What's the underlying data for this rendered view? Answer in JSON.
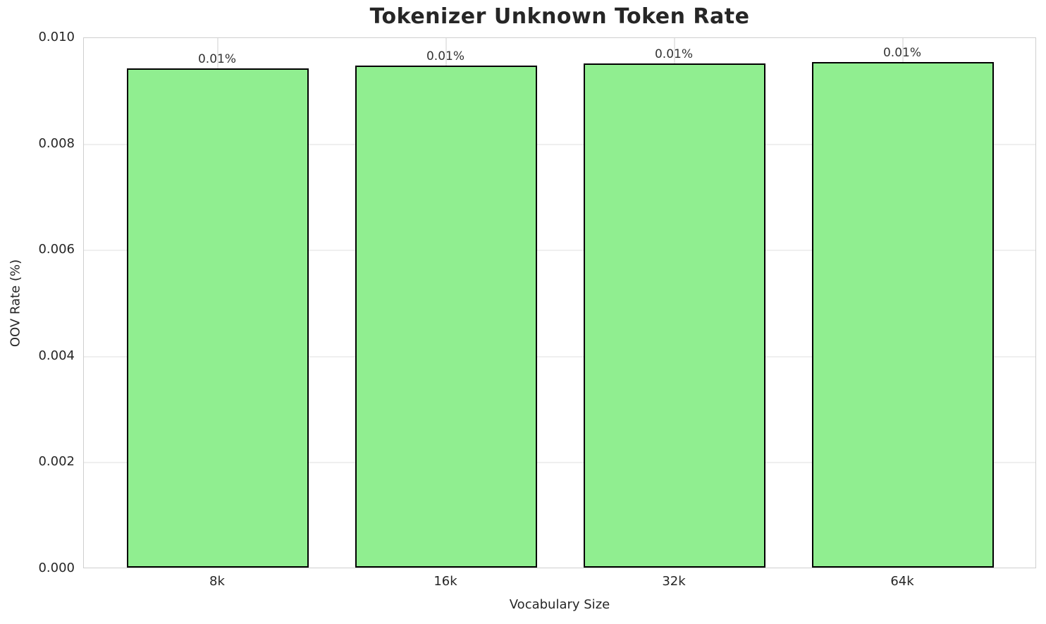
{
  "chart_data": {
    "type": "bar",
    "title": "Tokenizer Unknown Token Rate",
    "xlabel": "Vocabulary Size",
    "ylabel": "OOV Rate (%)",
    "categories": [
      "8k",
      "16k",
      "32k",
      "64k"
    ],
    "values": [
      0.0094,
      0.00945,
      0.00949,
      0.00952
    ],
    "bar_labels": [
      "0.01%",
      "0.01%",
      "0.01%",
      "0.01%"
    ],
    "ylim": [
      0.0,
      0.01
    ],
    "yticks": [
      0.0,
      0.002,
      0.004,
      0.006,
      0.008,
      0.01
    ],
    "ytick_labels": [
      "0.000",
      "0.002",
      "0.004",
      "0.006",
      "0.008",
      "0.010"
    ],
    "grid": true,
    "legend": "none",
    "bar_color": "#90EE90",
    "bar_edge_color": "#000000"
  }
}
